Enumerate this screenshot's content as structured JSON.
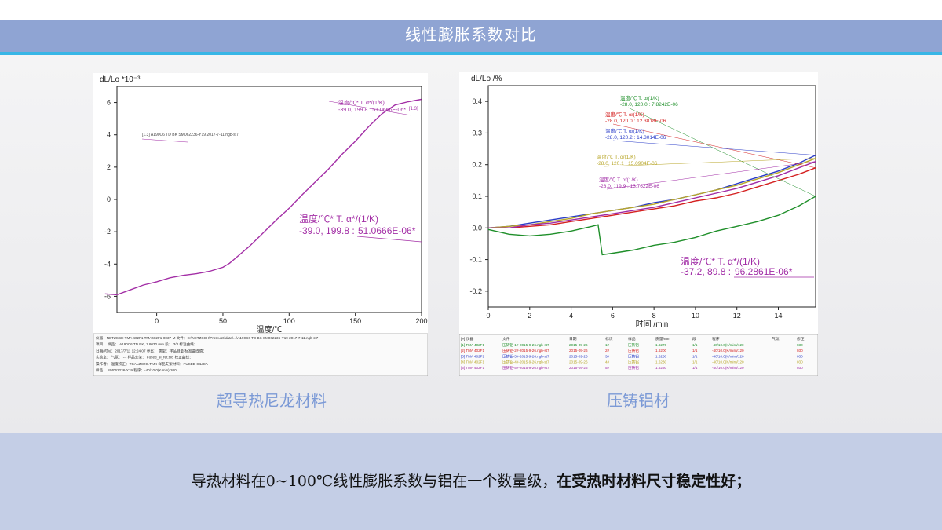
{
  "slide": {
    "title": "线性膨胀系数对比",
    "summary_normal": "导热材料在0~100℃线性膨胀系数与铝在一个数量级，",
    "summary_bold": "在受热时材料尺寸稳定性好；"
  },
  "colors": {
    "banner": "#8fa4d3",
    "accent_line": "#38b6e6",
    "caption": "#7c9ad6",
    "footer": "#c4cee6"
  },
  "chart_data": [
    {
      "type": "line",
      "caption": "超导热尼龙材料",
      "ylabel": "dL/Lo *10⁻³",
      "xlabel": "温度/℃",
      "xlim": [
        -30,
        200
      ],
      "ylim": [
        -7,
        7
      ],
      "xticks": [
        0,
        50,
        100,
        150,
        200
      ],
      "yticks": [
        -6,
        -4,
        -2,
        0,
        2,
        4,
        6
      ],
      "series": [
        {
          "color": "#a32fa6",
          "x": [
            -39,
            -30,
            -20,
            -10,
            0,
            10,
            20,
            30,
            40,
            50,
            55,
            60,
            70,
            80,
            90,
            100,
            110,
            120,
            130,
            140,
            150,
            160,
            170,
            180,
            190,
            199.8
          ],
          "y": [
            -5.85,
            -5.9,
            -5.6,
            -5.3,
            -5.1,
            -4.85,
            -4.7,
            -4.6,
            -4.45,
            -4.2,
            -3.95,
            -3.6,
            -2.9,
            -2.1,
            -1.3,
            -0.55,
            0.3,
            1.1,
            1.9,
            2.8,
            3.6,
            4.5,
            5.3,
            5.85,
            6.05,
            6.2
          ]
        }
      ],
      "annotations": [
        {
          "line1": "温度/℃*      T. α*/(1/K)",
          "line2": "-39.0, 199.8 :",
          "value": "51.0666E-06*"
        }
      ],
      "marker_label": "[1.3]",
      "small_annotation": "-39.0, 199.8 : 51.0666E-06*",
      "legend_line": "[1.3] A190C6 TD BK SM062236-Y19 2017-7-11.ngb-st7",
      "footer_info": [
        "仪器：NETZSCH TMA 402F1 TMA402F1-0037-M   文件：C:\\NETZSCH\\Proteus6\\data\\...\\A190C6 TD BK SM062236-Y19 2017-7-11.ngb-st7",
        "项目：          样品：  A190C6 TD BK, 1.8030 mm       段：    3/3        标准曲线：",
        "日期/时间：2017/7/11 12:24:07   参比：          类型：样品测量   标准曲线值：",
        "实验室：         气氛：  ---      样品支架：  Fused_si_ret.sici    校正曲线：",
        "操作者：         温度校正：TCALZERO.TMX   样品支架材料：FUSED SILICA",
        "样品：  SM062236-Y19     程序：-40/10.0(K/min)/200"
      ]
    },
    {
      "type": "line",
      "caption": "压铸铝材",
      "ylabel": "dL/Lo /%",
      "xlabel": "时间 /min",
      "xlim": [
        0,
        15.8
      ],
      "ylim": [
        -0.25,
        0.45
      ],
      "xticks": [
        0,
        2,
        4,
        6,
        8,
        10,
        12,
        14
      ],
      "yticks": [
        -0.2,
        -0.1,
        0.0,
        0.1,
        0.2,
        0.3,
        0.4
      ],
      "series": [
        {
          "color": "#1f8f2a",
          "x": [
            0,
            1,
            2,
            3,
            4,
            5,
            5.3,
            5.5,
            6,
            7,
            8,
            9,
            10,
            11,
            12,
            13,
            14,
            15,
            15.8
          ],
          "y": [
            -0.005,
            -0.02,
            -0.025,
            -0.02,
            -0.01,
            0.005,
            0.01,
            -0.085,
            -0.08,
            -0.07,
            -0.055,
            -0.045,
            -0.03,
            -0.01,
            0.005,
            0.02,
            0.04,
            0.07,
            0.1
          ]
        },
        {
          "color": "#d42020",
          "x": [
            0,
            1,
            2,
            3,
            4,
            5,
            6,
            7,
            8,
            9,
            10,
            11,
            12,
            13,
            14,
            15,
            15.8
          ],
          "y": [
            0.0,
            0.0,
            0.005,
            0.01,
            0.02,
            0.03,
            0.04,
            0.05,
            0.06,
            0.07,
            0.085,
            0.095,
            0.11,
            0.13,
            0.15,
            0.17,
            0.19
          ]
        },
        {
          "color": "#2a3cc8",
          "x": [
            0,
            1,
            2,
            3,
            4,
            5,
            6,
            7,
            8,
            9,
            10,
            11,
            12,
            13,
            14,
            15,
            15.8
          ],
          "y": [
            0.0,
            0.005,
            0.015,
            0.025,
            0.035,
            0.045,
            0.055,
            0.065,
            0.08,
            0.09,
            0.105,
            0.12,
            0.14,
            0.16,
            0.18,
            0.205,
            0.23
          ]
        },
        {
          "color": "#b8a628",
          "x": [
            0,
            1,
            2,
            3,
            4,
            5,
            6,
            7,
            8,
            9,
            10,
            11,
            12,
            13,
            14,
            15,
            15.8
          ],
          "y": [
            0.0,
            0.005,
            0.01,
            0.02,
            0.03,
            0.045,
            0.055,
            0.065,
            0.075,
            0.09,
            0.105,
            0.12,
            0.135,
            0.155,
            0.175,
            0.2,
            0.22
          ]
        },
        {
          "color": "#a02aa5",
          "x": [
            0,
            1,
            2,
            3,
            4,
            5,
            6,
            7,
            8,
            9,
            10,
            11,
            12,
            13,
            14,
            15,
            15.8
          ],
          "y": [
            0.0,
            0.0,
            0.01,
            0.015,
            0.025,
            0.035,
            0.045,
            0.055,
            0.065,
            0.08,
            0.095,
            0.11,
            0.125,
            0.145,
            0.165,
            0.19,
            0.21
          ]
        }
      ],
      "annotations": [
        {
          "color": "#1f8f2a",
          "line1": "温度/℃      T. α/(1/K)",
          "line2": "-28.0, 120.0 : 7.8242E-06"
        },
        {
          "color": "#d42020",
          "line1": "温度/℃      T. α/(1/K)",
          "line2": "-28.0, 120.0 : 12.3818E-06"
        },
        {
          "color": "#2a3cc8",
          "line1": "温度/℃      T. α/(1/K)",
          "line2": "-28.0, 120.2 : 14.3014E-06"
        },
        {
          "color": "#b8a628",
          "line1": "温度/℃      T. α/(1/K)",
          "line2": "-28.0, 120.1 : 15.0904E-06"
        },
        {
          "color": "#a02aa5",
          "line1": "温度/℃      T. α/(1/K)",
          "line2": "-28.0, 119.9 : 13.7622E-06"
        }
      ],
      "big_annotation": {
        "line1": "温度/℃*      T. α*/(1/K)",
        "line2": "-37.2, 89.8 :",
        "value": "96.2861E-06*"
      },
      "footer_header": [
        "[#] 仪器",
        "文件",
        "日期",
        "标识",
        "样品",
        "质量/mm",
        "段",
        "程序",
        "气氛",
        "修正"
      ],
      "footer_rows": [
        [
          "[1] TMA 402F1",
          "压铸铝-1#-2015-9-26.ngb-st7",
          "2015-09-26",
          "1#",
          "压铸铝",
          "1.6270",
          "1/1",
          "-40/10.0(K/min)/120",
          "",
          "030"
        ],
        [
          "[2] TMA 402F1",
          "压铸铝-2#-2015-9-26.ngb-st7",
          "2015-09-26",
          "2#",
          "压铸铝",
          "1.6200",
          "1/1",
          "-40/10.0(K/min)/120",
          "",
          "030"
        ],
        [
          "[3] TMA 402F1",
          "压铸铝-3#-2015-9-26.ngb-st7",
          "2015-09-26",
          "3#",
          "压铸铝",
          "1.6250",
          "1/1",
          "-40/10.0(K/min)/120",
          "",
          "030"
        ],
        [
          "[4] TMA 402F1",
          "压铸铝-4#-2015-9-26.ngb-st7",
          "2015-09-26",
          "4#",
          "压铸铝",
          "1.6230",
          "1/1",
          "-40/10.0(K/min)/120",
          "",
          "030"
        ],
        [
          "[5] TMA 402F1",
          "压铸铝-5#-2015-9-26.ngb-st7",
          "2015-09-26",
          "5#",
          "压铸铝",
          "1.6250",
          "1/1",
          "-40/10.0(K/min)/120",
          "",
          "030"
        ]
      ]
    }
  ]
}
